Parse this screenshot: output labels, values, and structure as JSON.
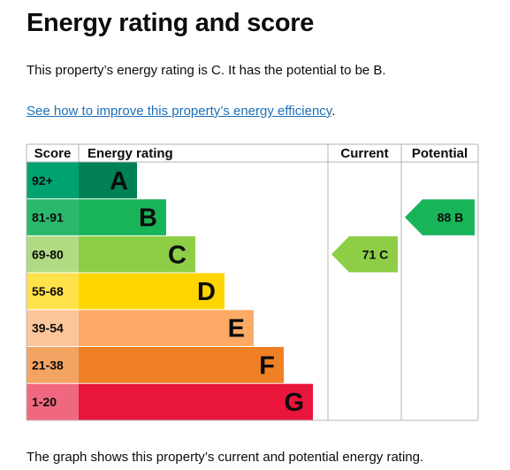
{
  "page": {
    "title": "Energy rating and score",
    "summary": "This property’s energy rating is C. It has the potential to be B.",
    "improve_link": "See how to improve this property’s energy efficiency",
    "improve_link_suffix": ".",
    "footer": "The graph shows this property’s current and potential energy rating."
  },
  "chart_data": {
    "type": "table",
    "headers": {
      "score": "Score",
      "rating": "Energy rating",
      "current": "Current",
      "potential": "Potential"
    },
    "bands": [
      {
        "score": "92+",
        "letter": "A",
        "color": "#008054",
        "score_color": "#00a370"
      },
      {
        "score": "81-91",
        "letter": "B",
        "color": "#19b459",
        "score_color": "#2ab86c"
      },
      {
        "score": "69-80",
        "letter": "C",
        "color": "#8dce46",
        "score_color": "#b1db83"
      },
      {
        "score": "55-68",
        "letter": "D",
        "color": "#ffd500",
        "score_color": "#ffe249"
      },
      {
        "score": "39-54",
        "letter": "E",
        "color": "#fcaa65",
        "score_color": "#fdc69a"
      },
      {
        "score": "21-38",
        "letter": "F",
        "color": "#ef8023",
        "score_color": "#f4a462"
      },
      {
        "score": "1-20",
        "letter": "G",
        "color": "#e9153b",
        "score_color": "#f0687f"
      }
    ],
    "current": {
      "value": 71,
      "letter": "C",
      "label": "71  C",
      "color": "#8dce46"
    },
    "potential": {
      "value": 88,
      "letter": "B",
      "label": "88  B",
      "color": "#19b459"
    }
  }
}
